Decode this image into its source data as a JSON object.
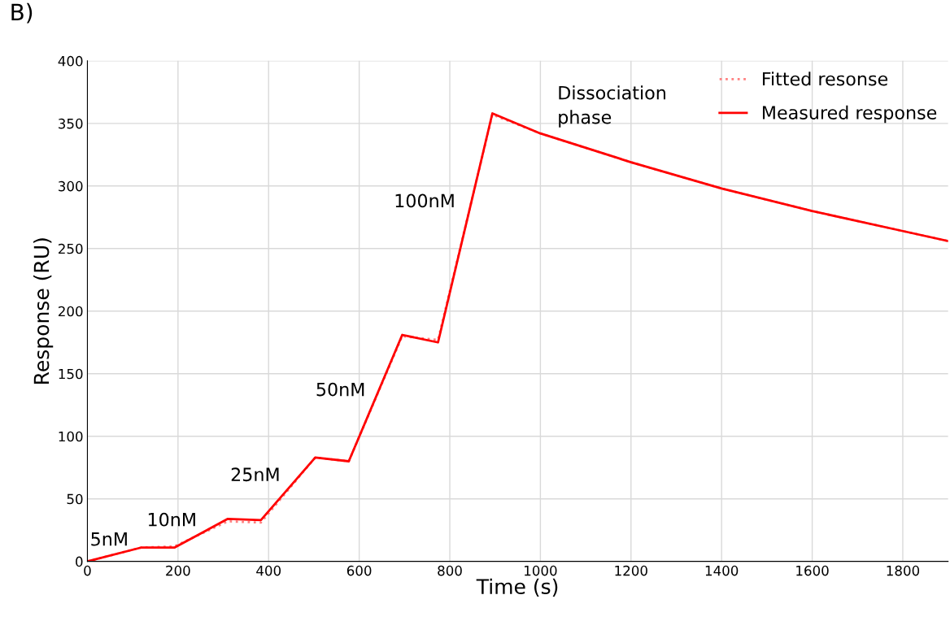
{
  "chart_data": {
    "type": "line",
    "title": "B)",
    "xlabel": "Time (s)",
    "ylabel": "Response (RU)",
    "xlim": [
      0,
      1900
    ],
    "xticks": [
      0,
      200,
      400,
      600,
      800,
      1000,
      1200,
      1400,
      1600,
      1800
    ],
    "ylim": [
      0,
      400
    ],
    "yticks": [
      0,
      50,
      100,
      150,
      200,
      250,
      300,
      350,
      400
    ],
    "grid": true,
    "legend": "top right",
    "series": [
      {
        "name": "Fitted resonse",
        "color": "#ff8080",
        "line_style": "dotted",
        "x": [
          0,
          118,
          192,
          310,
          383,
          503,
          577,
          695,
          774,
          894,
          1000,
          1200,
          1400,
          1600,
          1800,
          1900
        ],
        "values": [
          0,
          11,
          12,
          32,
          31,
          83,
          80,
          180,
          177,
          357,
          342,
          319,
          298,
          280,
          264,
          256
        ]
      },
      {
        "name": "Measured response",
        "color": "#ff0000",
        "line_style": "solid",
        "x": [
          0,
          118,
          192,
          310,
          383,
          503,
          577,
          695,
          774,
          894,
          1000,
          1200,
          1400,
          1600,
          1800,
          1900
        ],
        "values": [
          0,
          11,
          11,
          34,
          33,
          83,
          80,
          181,
          175,
          358,
          342,
          319,
          298,
          280,
          264,
          256
        ]
      }
    ],
    "annotations": [
      "5nM",
      "10nM",
      "25nM",
      "50nM",
      "100nM",
      "Dissociation\nphase"
    ]
  }
}
